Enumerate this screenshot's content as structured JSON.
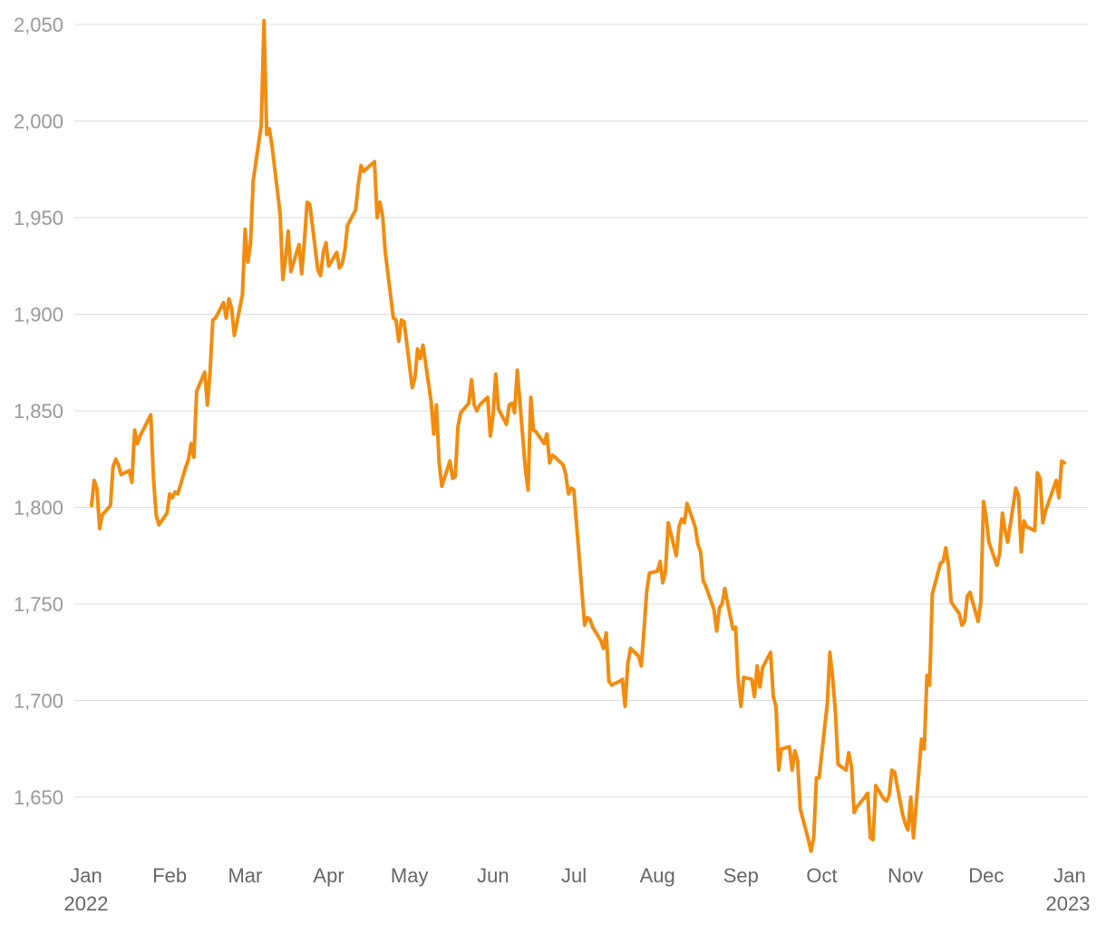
{
  "chart_data": {
    "type": "line",
    "title": "",
    "xlabel": "",
    "ylabel": "",
    "ylim": [
      1620,
      2055
    ],
    "grid": true,
    "line_color": "#F28C0F",
    "y_ticks": [
      {
        "value": 1650,
        "label": "1,650"
      },
      {
        "value": 1700,
        "label": "1,700"
      },
      {
        "value": 1750,
        "label": "1,750"
      },
      {
        "value": 1800,
        "label": "1,800"
      },
      {
        "value": 1850,
        "label": "1,850"
      },
      {
        "value": 1900,
        "label": "1,900"
      },
      {
        "value": 1950,
        "label": "1,950"
      },
      {
        "value": 2000,
        "label": "2,000"
      },
      {
        "value": 2050,
        "label": "2,050"
      }
    ],
    "x_ticks": [
      {
        "date": "2022-01-01",
        "label": "Jan",
        "sublabel": "2022"
      },
      {
        "date": "2022-02-01",
        "label": "Feb",
        "sublabel": ""
      },
      {
        "date": "2022-03-01",
        "label": "Mar",
        "sublabel": ""
      },
      {
        "date": "2022-04-01",
        "label": "Apr",
        "sublabel": ""
      },
      {
        "date": "2022-05-01",
        "label": "May",
        "sublabel": ""
      },
      {
        "date": "2022-06-01",
        "label": "Jun",
        "sublabel": ""
      },
      {
        "date": "2022-07-01",
        "label": "Jul",
        "sublabel": ""
      },
      {
        "date": "2022-08-01",
        "label": "Aug",
        "sublabel": ""
      },
      {
        "date": "2022-09-01",
        "label": "Sep",
        "sublabel": ""
      },
      {
        "date": "2022-10-01",
        "label": "Oct",
        "sublabel": ""
      },
      {
        "date": "2022-11-01",
        "label": "Nov",
        "sublabel": ""
      },
      {
        "date": "2022-12-01",
        "label": "Dec",
        "sublabel": ""
      },
      {
        "date": "2023-01-01",
        "label": "Jan",
        "sublabel": "2023"
      }
    ],
    "series": [
      {
        "x": [
          "2022-01-03",
          "2022-01-04",
          "2022-01-05",
          "2022-01-06",
          "2022-01-07",
          "2022-01-10",
          "2022-01-11",
          "2022-01-12",
          "2022-01-13",
          "2022-01-14",
          "2022-01-17",
          "2022-01-18",
          "2022-01-19",
          "2022-01-20",
          "2022-01-21",
          "2022-01-24",
          "2022-01-25",
          "2022-01-26",
          "2022-01-27",
          "2022-01-28",
          "2022-01-31",
          "2022-02-01",
          "2022-02-02",
          "2022-02-03",
          "2022-02-04",
          "2022-02-07",
          "2022-02-08",
          "2022-02-09",
          "2022-02-10",
          "2022-02-11",
          "2022-02-14",
          "2022-02-15",
          "2022-02-16",
          "2022-02-17",
          "2022-02-18",
          "2022-02-21",
          "2022-02-22",
          "2022-02-23",
          "2022-02-24",
          "2022-02-25",
          "2022-02-28",
          "2022-03-01",
          "2022-03-02",
          "2022-03-03",
          "2022-03-04",
          "2022-03-07",
          "2022-03-08",
          "2022-03-09",
          "2022-03-10",
          "2022-03-11",
          "2022-03-14",
          "2022-03-15",
          "2022-03-16",
          "2022-03-17",
          "2022-03-18",
          "2022-03-21",
          "2022-03-22",
          "2022-03-23",
          "2022-03-24",
          "2022-03-25",
          "2022-03-28",
          "2022-03-29",
          "2022-03-30",
          "2022-03-31",
          "2022-04-01",
          "2022-04-04",
          "2022-04-05",
          "2022-04-06",
          "2022-04-07",
          "2022-04-08",
          "2022-04-11",
          "2022-04-12",
          "2022-04-13",
          "2022-04-14",
          "2022-04-18",
          "2022-04-19",
          "2022-04-20",
          "2022-04-21",
          "2022-04-22",
          "2022-04-25",
          "2022-04-26",
          "2022-04-27",
          "2022-04-28",
          "2022-04-29",
          "2022-05-02",
          "2022-05-03",
          "2022-05-04",
          "2022-05-05",
          "2022-05-06",
          "2022-05-09",
          "2022-05-10",
          "2022-05-11",
          "2022-05-12",
          "2022-05-13",
          "2022-05-16",
          "2022-05-17",
          "2022-05-18",
          "2022-05-19",
          "2022-05-20",
          "2022-05-23",
          "2022-05-24",
          "2022-05-25",
          "2022-05-26",
          "2022-05-27",
          "2022-05-30",
          "2022-05-31",
          "2022-06-01",
          "2022-06-02",
          "2022-06-03",
          "2022-06-06",
          "2022-06-07",
          "2022-06-08",
          "2022-06-09",
          "2022-06-10",
          "2022-06-13",
          "2022-06-14",
          "2022-06-15",
          "2022-06-16",
          "2022-06-17",
          "2022-06-20",
          "2022-06-21",
          "2022-06-22",
          "2022-06-23",
          "2022-06-24",
          "2022-06-27",
          "2022-06-28",
          "2022-06-29",
          "2022-06-30",
          "2022-07-01",
          "2022-07-05",
          "2022-07-06",
          "2022-07-07",
          "2022-07-08",
          "2022-07-11",
          "2022-07-12",
          "2022-07-13",
          "2022-07-14",
          "2022-07-15",
          "2022-07-18",
          "2022-07-19",
          "2022-07-20",
          "2022-07-21",
          "2022-07-22",
          "2022-07-25",
          "2022-07-26",
          "2022-07-27",
          "2022-07-28",
          "2022-07-29",
          "2022-08-01",
          "2022-08-02",
          "2022-08-03",
          "2022-08-04",
          "2022-08-05",
          "2022-08-08",
          "2022-08-09",
          "2022-08-10",
          "2022-08-11",
          "2022-08-12",
          "2022-08-15",
          "2022-08-16",
          "2022-08-17",
          "2022-08-18",
          "2022-08-19",
          "2022-08-22",
          "2022-08-23",
          "2022-08-24",
          "2022-08-25",
          "2022-08-26",
          "2022-08-29",
          "2022-08-30",
          "2022-08-31",
          "2022-09-01",
          "2022-09-02",
          "2022-09-05",
          "2022-09-06",
          "2022-09-07",
          "2022-09-08",
          "2022-09-09",
          "2022-09-12",
          "2022-09-13",
          "2022-09-14",
          "2022-09-15",
          "2022-09-16",
          "2022-09-19",
          "2022-09-20",
          "2022-09-21",
          "2022-09-22",
          "2022-09-23",
          "2022-09-26",
          "2022-09-27",
          "2022-09-28",
          "2022-09-29",
          "2022-09-30",
          "2022-10-03",
          "2022-10-04",
          "2022-10-05",
          "2022-10-06",
          "2022-10-07",
          "2022-10-10",
          "2022-10-11",
          "2022-10-12",
          "2022-10-13",
          "2022-10-14",
          "2022-10-17",
          "2022-10-18",
          "2022-10-19",
          "2022-10-20",
          "2022-10-21",
          "2022-10-24",
          "2022-10-25",
          "2022-10-26",
          "2022-10-27",
          "2022-10-28",
          "2022-10-31",
          "2022-11-01",
          "2022-11-02",
          "2022-11-03",
          "2022-11-04",
          "2022-11-07",
          "2022-11-08",
          "2022-11-09",
          "2022-11-10",
          "2022-11-11",
          "2022-11-14",
          "2022-11-15",
          "2022-11-16",
          "2022-11-17",
          "2022-11-18",
          "2022-11-21",
          "2022-11-22",
          "2022-11-23",
          "2022-11-24",
          "2022-11-25",
          "2022-11-28",
          "2022-11-29",
          "2022-11-30",
          "2022-12-01",
          "2022-12-02",
          "2022-12-05",
          "2022-12-06",
          "2022-12-07",
          "2022-12-08",
          "2022-12-09",
          "2022-12-12",
          "2022-12-13",
          "2022-12-14",
          "2022-12-15",
          "2022-12-16",
          "2022-12-19",
          "2022-12-20",
          "2022-12-21",
          "2022-12-22",
          "2022-12-23",
          "2022-12-27",
          "2022-12-28",
          "2022-12-29",
          "2022-12-30"
        ],
        "y": [
          1801,
          1814,
          1810,
          1789,
          1796,
          1801,
          1821,
          1825,
          1822,
          1817,
          1819,
          1813,
          1840,
          1833,
          1837,
          1845,
          1848,
          1815,
          1796,
          1791,
          1797,
          1807,
          1805,
          1808,
          1807,
          1821,
          1825,
          1833,
          1826,
          1860,
          1870,
          1853,
          1870,
          1897,
          1898,
          1906,
          1898,
          1908,
          1903,
          1889,
          1910,
          1944,
          1927,
          1936,
          1969,
          1998,
          2052,
          1993,
          1996,
          1987,
          1952,
          1918,
          1929,
          1943,
          1922,
          1936,
          1921,
          1938,
          1958,
          1957,
          1923,
          1920,
          1932,
          1937,
          1925,
          1932,
          1924,
          1926,
          1933,
          1946,
          1954,
          1967,
          1977,
          1974,
          1979,
          1950,
          1958,
          1951,
          1932,
          1898,
          1897,
          1886,
          1897,
          1896,
          1862,
          1867,
          1882,
          1877,
          1884,
          1855,
          1838,
          1853,
          1823,
          1811,
          1824,
          1815,
          1816,
          1842,
          1849,
          1854,
          1866,
          1853,
          1850,
          1853,
          1857,
          1837,
          1848,
          1869,
          1851,
          1843,
          1853,
          1854,
          1849,
          1871,
          1820,
          1809,
          1857,
          1840,
          1839,
          1833,
          1838,
          1823,
          1827,
          1826,
          1822,
          1817,
          1807,
          1810,
          1809,
          1739,
          1743,
          1742,
          1738,
          1731,
          1727,
          1735,
          1710,
          1708,
          1710,
          1711,
          1697,
          1719,
          1727,
          1723,
          1718,
          1736,
          1756,
          1766,
          1767,
          1772,
          1761,
          1767,
          1792,
          1775,
          1790,
          1794,
          1792,
          1802,
          1790,
          1781,
          1777,
          1762,
          1759,
          1747,
          1736,
          1748,
          1750,
          1758,
          1737,
          1738,
          1710,
          1697,
          1712,
          1711,
          1702,
          1718,
          1707,
          1717,
          1725,
          1702,
          1697,
          1664,
          1675,
          1676,
          1664,
          1674,
          1669,
          1644,
          1628,
          1622,
          1629,
          1660,
          1660,
          1698,
          1725,
          1712,
          1695,
          1667,
          1664,
          1673,
          1666,
          1642,
          1645,
          1650,
          1652,
          1629,
          1628,
          1656,
          1649,
          1648,
          1651,
          1664,
          1663,
          1641,
          1636,
          1633,
          1650,
          1629,
          1680,
          1675,
          1713,
          1708,
          1755,
          1771,
          1772,
          1779,
          1770,
          1751,
          1745,
          1739,
          1741,
          1754,
          1756,
          1741,
          1751,
          1803,
          1795,
          1782,
          1770,
          1776,
          1797,
          1788,
          1782,
          1810,
          1806,
          1777,
          1793,
          1790,
          1788,
          1818,
          1815,
          1792,
          1798,
          1814,
          1805,
          1824,
          1823
        ]
      }
    ]
  }
}
